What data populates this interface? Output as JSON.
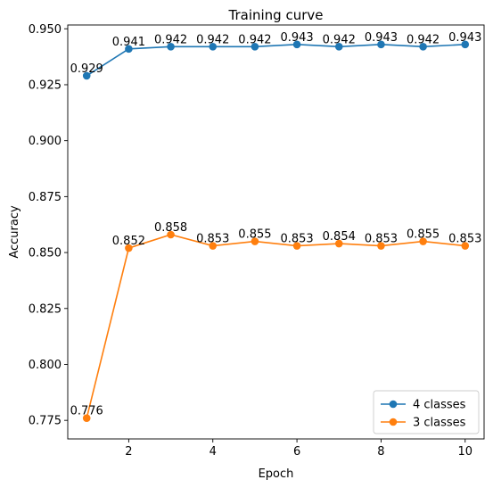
{
  "chart_data": {
    "type": "line",
    "title": "Training curve",
    "xlabel": "Epoch",
    "ylabel": "Accuracy",
    "x": [
      1,
      2,
      3,
      4,
      5,
      6,
      7,
      8,
      9,
      10
    ],
    "xlim": [
      0.55,
      10.45
    ],
    "ylim": [
      0.7667,
      0.9517
    ],
    "x_ticks": [
      2,
      4,
      6,
      8,
      10
    ],
    "y_ticks": [
      0.775,
      0.8,
      0.825,
      0.85,
      0.875,
      0.9,
      0.925,
      0.95
    ],
    "x_tick_labels": [
      "2",
      "4",
      "6",
      "8",
      "10"
    ],
    "y_tick_labels": [
      "0.775",
      "0.800",
      "0.825",
      "0.850",
      "0.875",
      "0.900",
      "0.925",
      "0.950"
    ],
    "grid": false,
    "legend_position": "bottom-right",
    "series": [
      {
        "name": "4 classes",
        "color": "#1f77b4",
        "marker": "circle",
        "values": [
          0.929,
          0.941,
          0.942,
          0.942,
          0.942,
          0.943,
          0.942,
          0.943,
          0.942,
          0.943
        ],
        "labels": [
          "0.929",
          "0.941",
          "0.942",
          "0.942",
          "0.942",
          "0.943",
          "0.942",
          "0.943",
          "0.942",
          "0.943"
        ]
      },
      {
        "name": "3 classes",
        "color": "#ff7f0e",
        "marker": "circle",
        "values": [
          0.776,
          0.852,
          0.858,
          0.853,
          0.855,
          0.853,
          0.854,
          0.853,
          0.855,
          0.853
        ],
        "labels": [
          "0.776",
          "0.852",
          "0.858",
          "0.853",
          "0.855",
          "0.853",
          "0.854",
          "0.853",
          "0.855",
          "0.853"
        ]
      }
    ]
  }
}
